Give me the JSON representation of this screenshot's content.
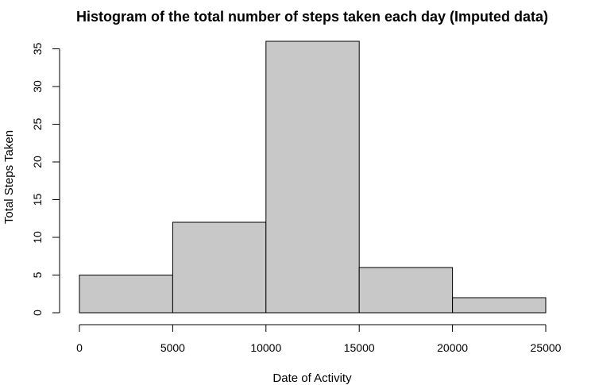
{
  "chart_data": {
    "type": "bar",
    "title": "Histogram of the total number of steps taken each day (Imputed data)",
    "xlabel": "Date of Activity",
    "ylabel": "Total Steps Taken",
    "bins": [
      {
        "start": 0,
        "end": 5000,
        "value": 5
      },
      {
        "start": 5000,
        "end": 10000,
        "value": 12
      },
      {
        "start": 10000,
        "end": 15000,
        "value": 36
      },
      {
        "start": 15000,
        "end": 20000,
        "value": 6
      },
      {
        "start": 20000,
        "end": 25000,
        "value": 2
      }
    ],
    "xlim": [
      0,
      25000
    ],
    "ylim": [
      0,
      35
    ],
    "x_ticks": [
      0,
      5000,
      10000,
      15000,
      20000,
      25000
    ],
    "y_ticks": [
      0,
      5,
      10,
      15,
      20,
      25,
      30,
      35
    ],
    "bar_color": "#c8c8c8",
    "edge_color": "#000000",
    "grid": false,
    "legend": "none"
  }
}
